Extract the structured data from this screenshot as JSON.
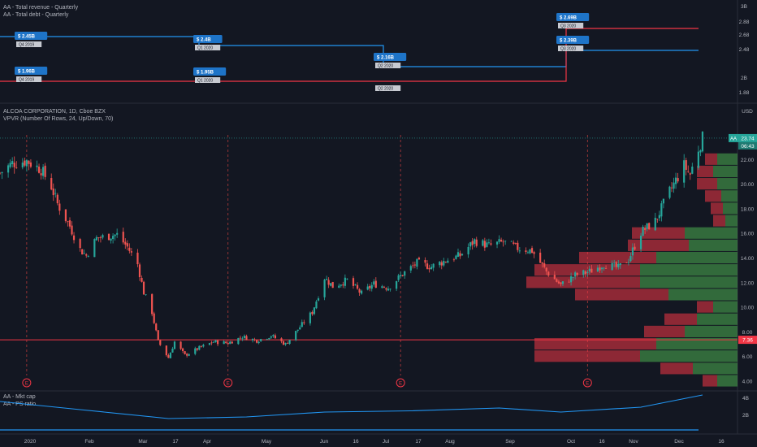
{
  "top_pane": {
    "legend": [
      "AA - Total revenue - Quarterly",
      "AA - Total debt - Quarterly"
    ],
    "price_ticks": [
      "3B",
      "2.88",
      "2.68",
      "2.48",
      "2B",
      "1.88"
    ],
    "revenue_color": "#2196f3",
    "debt_color": "#f23645",
    "revenue_steps": [
      {
        "value": "$ 2.45B",
        "quarter": "Q4 2019"
      },
      {
        "value": "$ 2.4B",
        "quarter": "Q1 2020"
      },
      {
        "value": "$ 2.16B",
        "quarter": "Q2 2020"
      },
      {
        "value": "$ 2.39B",
        "quarter": "Q3 2020"
      }
    ],
    "debt_steps": [
      {
        "value": "$ 1.96B",
        "quarter": "Q4 2019"
      },
      {
        "value": "$ 1.95B",
        "quarter": "Q1 2020"
      },
      {
        "value": "",
        "quarter": "Q2 2020"
      },
      {
        "value": "$ 2.69B",
        "quarter": "Q3 2020"
      }
    ]
  },
  "main_pane": {
    "symbol_title": "ALCOA CORPORATION, 1D, Cboe BZX",
    "indicator_title": "VPVR (Number Of Rows, 24, Up/Down, 70)",
    "currency": "USD",
    "price_ticks": [
      "22.00",
      "20.00",
      "18.00",
      "16.00",
      "14.00",
      "12.00",
      "10.00",
      "8.00",
      "6.00",
      "4.00"
    ],
    "last_price_symbol": "AA",
    "last_price": "23.74",
    "countdown": "06:43",
    "horizontal_line_price": "7.36",
    "earnings_marker": "E"
  },
  "bottom_pane": {
    "legend": [
      "AA - Mkt cap",
      "AA - PS ratio"
    ],
    "ticks": [
      "4B",
      "2B"
    ]
  },
  "time_axis": [
    "2020",
    "Feb",
    "Mar",
    "17",
    "Apr",
    "May",
    "Jun",
    "16",
    "Jul",
    "17",
    "Aug",
    "Sep",
    "Oct",
    "16",
    "Nov",
    "Dec",
    "16"
  ],
  "chart_data": {
    "type": "candlestick",
    "ylim": [
      4,
      25
    ],
    "close_path": [
      [
        "2020-01-02",
        20.9
      ],
      [
        "2020-01-08",
        21.7
      ],
      [
        "2020-01-15",
        21.9
      ],
      [
        "2020-01-22",
        21.2
      ],
      [
        "2020-01-27",
        19.8
      ],
      [
        "2020-01-30",
        18.4
      ],
      [
        "2020-02-05",
        16.6
      ],
      [
        "2020-02-10",
        14.7
      ],
      [
        "2020-02-13",
        14.2
      ],
      [
        "2020-02-18",
        15.6
      ],
      [
        "2020-02-24",
        15.8
      ],
      [
        "2020-02-28",
        15.9
      ],
      [
        "2020-03-04",
        14.9
      ],
      [
        "2020-03-09",
        13.5
      ],
      [
        "2020-03-12",
        11.2
      ],
      [
        "2020-03-16",
        9.6
      ],
      [
        "2020-03-19",
        7.2
      ],
      [
        "2020-03-24",
        5.9
      ],
      [
        "2020-03-27",
        7.2
      ],
      [
        "2020-04-01",
        6.1
      ],
      [
        "2020-04-08",
        6.7
      ],
      [
        "2020-04-15",
        7.2
      ],
      [
        "2020-04-22",
        7.1
      ],
      [
        "2020-04-29",
        7.6
      ],
      [
        "2020-05-06",
        7.3
      ],
      [
        "2020-05-13",
        7.7
      ],
      [
        "2020-05-20",
        7.0
      ],
      [
        "2020-05-27",
        8.4
      ],
      [
        "2020-06-02",
        9.6
      ],
      [
        "2020-06-08",
        12.4
      ],
      [
        "2020-06-12",
        11.7
      ],
      [
        "2020-06-19",
        12.2
      ],
      [
        "2020-06-26",
        11.1
      ],
      [
        "2020-07-02",
        11.9
      ],
      [
        "2020-07-09",
        11.6
      ],
      [
        "2020-07-16",
        12.7
      ],
      [
        "2020-07-23",
        13.6
      ],
      [
        "2020-07-30",
        13.3
      ],
      [
        "2020-08-06",
        13.8
      ],
      [
        "2020-08-13",
        14.2
      ],
      [
        "2020-08-20",
        15.4
      ],
      [
        "2020-08-27",
        15.0
      ],
      [
        "2020-09-03",
        15.3
      ],
      [
        "2020-09-10",
        14.8
      ],
      [
        "2020-09-17",
        14.6
      ],
      [
        "2020-09-24",
        12.9
      ],
      [
        "2020-10-01",
        11.8
      ],
      [
        "2020-10-08",
        12.6
      ],
      [
        "2020-10-15",
        12.9
      ],
      [
        "2020-10-22",
        13.5
      ],
      [
        "2020-10-29",
        13.2
      ],
      [
        "2020-11-03",
        13.9
      ],
      [
        "2020-11-09",
        16.1
      ],
      [
        "2020-11-16",
        17.0
      ],
      [
        "2020-11-23",
        19.4
      ],
      [
        "2020-11-30",
        21.5
      ],
      [
        "2020-12-03",
        20.8
      ],
      [
        "2020-12-07",
        22.9
      ],
      [
        "2020-12-09",
        23.7
      ]
    ],
    "earnings_dates": [
      "2020-01-15",
      "2020-04-22",
      "2020-07-15",
      "2020-10-14"
    ],
    "volume_profile": [
      {
        "price": 22.0,
        "up": 25,
        "down": 15
      },
      {
        "price": 21.0,
        "up": 30,
        "down": 20
      },
      {
        "price": 20.0,
        "up": 25,
        "down": 25
      },
      {
        "price": 19.0,
        "up": 20,
        "down": 20
      },
      {
        "price": 18.0,
        "up": 18,
        "down": 15
      },
      {
        "price": 17.0,
        "up": 15,
        "down": 15
      },
      {
        "price": 16.0,
        "up": 65,
        "down": 65
      },
      {
        "price": 15.0,
        "up": 60,
        "down": 75
      },
      {
        "price": 14.0,
        "up": 100,
        "down": 95
      },
      {
        "price": 13.0,
        "up": 120,
        "down": 130
      },
      {
        "price": 12.0,
        "up": 120,
        "down": 140
      },
      {
        "price": 11.0,
        "up": 85,
        "down": 115
      },
      {
        "price": 10.0,
        "up": 30,
        "down": 20
      },
      {
        "price": 9.0,
        "up": 50,
        "down": 40
      },
      {
        "price": 8.0,
        "up": 65,
        "down": 50
      },
      {
        "price": 7.0,
        "up": 100,
        "down": 150
      },
      {
        "price": 6.0,
        "up": 120,
        "down": 130
      },
      {
        "price": 5.0,
        "up": 55,
        "down": 40
      },
      {
        "price": 4.0,
        "up": 25,
        "down": 18
      }
    ],
    "ps_ratio_path": [
      [
        "2020-01-02",
        0.72
      ],
      [
        "2020-02-10",
        0.52
      ],
      [
        "2020-03-24",
        0.3
      ],
      [
        "2020-05-01",
        0.34
      ],
      [
        "2020-06-08",
        0.46
      ],
      [
        "2020-07-20",
        0.49
      ],
      [
        "2020-09-01",
        0.56
      ],
      [
        "2020-10-01",
        0.46
      ],
      [
        "2020-11-09",
        0.58
      ],
      [
        "2020-12-09",
        0.88
      ]
    ]
  }
}
